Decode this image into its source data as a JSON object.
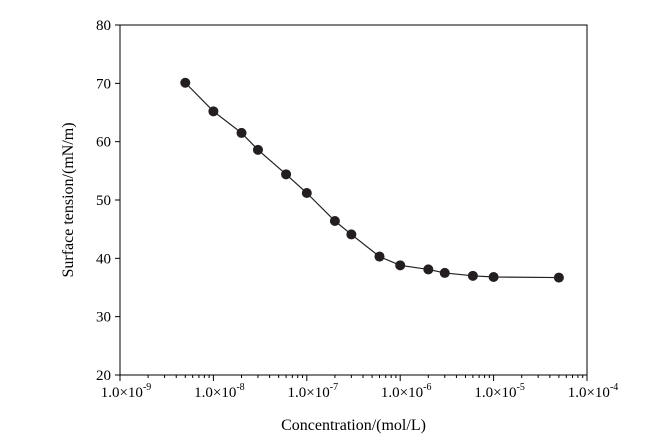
{
  "chart_data": {
    "type": "scatter",
    "x_scale": "log",
    "xlabel": "Concentration/(mol/L)",
    "ylabel": "Surface tension/(mN/m)",
    "xlim": [
      1e-09,
      0.0001
    ],
    "ylim": [
      20,
      80
    ],
    "grid": false,
    "x_ticks": [
      {
        "mantissa": "1.0×10",
        "exp": "-9",
        "value": 1e-09
      },
      {
        "mantissa": "1.0×10",
        "exp": "-8",
        "value": 1e-08
      },
      {
        "mantissa": "1.0×10",
        "exp": "-7",
        "value": 1e-07
      },
      {
        "mantissa": "1.0×10",
        "exp": "-6",
        "value": 1e-06
      },
      {
        "mantissa": "1.0×10",
        "exp": "-5",
        "value": 1e-05
      },
      {
        "mantissa": "1.0×10",
        "exp": "-4",
        "value": 0.0001
      }
    ],
    "y_ticks": [
      20,
      30,
      40,
      50,
      60,
      70,
      80
    ],
    "marker_color": "#231f20",
    "line_color": "#231f20",
    "series": [
      {
        "x": [
          5e-09,
          1e-08,
          2e-08,
          3e-08,
          6e-08,
          1e-07,
          2e-07,
          3e-07,
          6e-07,
          1e-06,
          2e-06,
          3e-06,
          6e-06,
          1e-05,
          5e-05
        ],
        "y": [
          70.1,
          65.2,
          61.5,
          58.6,
          54.4,
          51.2,
          46.4,
          44.1,
          40.3,
          38.8,
          38.1,
          37.5,
          37.0,
          36.8,
          36.7
        ]
      }
    ]
  }
}
